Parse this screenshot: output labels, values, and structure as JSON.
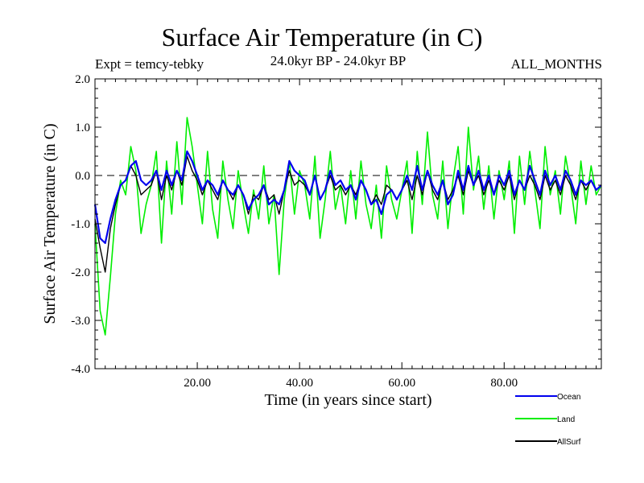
{
  "header": {
    "title": "Surface Air Temperature (in C)",
    "expt": "Expt = temcy-tebky",
    "period": "24.0kyr BP - 24.0kyr BP",
    "months": "ALL_MONTHS"
  },
  "chart_data": {
    "type": "line",
    "title": "Surface Air Temperature (in C)",
    "xlabel": "Time (in years since start)",
    "ylabel": "Surface Air Temperature (in C)",
    "xlim": [
      0,
      99
    ],
    "ylim": [
      -4.0,
      2.0
    ],
    "x_ticks": [
      20,
      40,
      60,
      80
    ],
    "x_tick_labels": [
      "20.00",
      "40.00",
      "60.00",
      "80.00"
    ],
    "y_ticks": [
      2.0,
      1.0,
      0.0,
      -1.0,
      -2.0,
      -3.0,
      -4.0
    ],
    "y_tick_labels": [
      "2.0",
      "1.0",
      "0.0",
      "-1.0",
      "-2.0",
      "-3.0",
      "-4.0"
    ],
    "reference_line": 0.0,
    "legend_position": "bottom-right",
    "series": [
      {
        "name": "Land",
        "color": "#00ee00",
        "x": [
          0,
          1,
          2,
          3,
          4,
          5,
          6,
          7,
          8,
          9,
          10,
          11,
          12,
          13,
          14,
          15,
          16,
          17,
          18,
          19,
          20,
          21,
          22,
          23,
          24,
          25,
          26,
          27,
          28,
          29,
          30,
          31,
          32,
          33,
          34,
          35,
          36,
          37,
          38,
          39,
          40,
          41,
          42,
          43,
          44,
          45,
          46,
          47,
          48,
          49,
          50,
          51,
          52,
          53,
          54,
          55,
          56,
          57,
          58,
          59,
          60,
          61,
          62,
          63,
          64,
          65,
          66,
          67,
          68,
          69,
          70,
          71,
          72,
          73,
          74,
          75,
          76,
          77,
          78,
          79,
          80,
          81,
          82,
          83,
          84,
          85,
          86,
          87,
          88,
          89,
          90,
          91,
          92,
          93,
          94,
          95,
          96,
          97,
          98,
          99
        ],
        "values": [
          -1.0,
          -2.8,
          -3.3,
          -2.1,
          -0.8,
          -0.1,
          -0.4,
          0.6,
          0.1,
          -1.2,
          -0.6,
          -0.2,
          0.5,
          -1.4,
          0.3,
          -0.8,
          0.7,
          -0.6,
          1.2,
          0.6,
          -0.2,
          -1.0,
          0.5,
          -0.7,
          -1.3,
          0.3,
          -0.5,
          -1.1,
          0.1,
          -0.6,
          -1.2,
          -0.3,
          -0.9,
          0.2,
          -1.0,
          -0.4,
          -2.05,
          -0.5,
          0.3,
          -0.8,
          0.1,
          -0.2,
          -0.9,
          0.4,
          -1.3,
          -0.5,
          0.5,
          -0.7,
          -0.2,
          -1.0,
          0.1,
          -0.9,
          0.3,
          -0.6,
          -1.1,
          -0.2,
          -1.3,
          0.2,
          -0.5,
          -0.9,
          -0.3,
          0.3,
          -1.2,
          0.5,
          -0.6,
          0.9,
          -0.4,
          -0.9,
          0.3,
          -1.1,
          -0.1,
          0.6,
          -0.8,
          1.0,
          -0.3,
          0.4,
          -0.7,
          0.2,
          -0.9,
          0.1,
          -0.5,
          0.3,
          -1.2,
          0.4,
          -0.6,
          0.5,
          -0.3,
          -1.1,
          0.6,
          -0.4,
          0.1,
          -0.8,
          0.4,
          -0.2,
          -1.0,
          0.3,
          -0.6,
          0.2,
          -0.4,
          -0.2
        ]
      },
      {
        "name": "AllSurf",
        "color": "#000000",
        "x": [
          0,
          1,
          2,
          3,
          4,
          5,
          6,
          7,
          8,
          9,
          10,
          11,
          12,
          13,
          14,
          15,
          16,
          17,
          18,
          19,
          20,
          21,
          22,
          23,
          24,
          25,
          26,
          27,
          28,
          29,
          30,
          31,
          32,
          33,
          34,
          35,
          36,
          37,
          38,
          39,
          40,
          41,
          42,
          43,
          44,
          45,
          46,
          47,
          48,
          49,
          50,
          51,
          52,
          53,
          54,
          55,
          56,
          57,
          58,
          59,
          60,
          61,
          62,
          63,
          64,
          65,
          66,
          67,
          68,
          69,
          70,
          71,
          72,
          73,
          74,
          75,
          76,
          77,
          78,
          79,
          80,
          81,
          82,
          83,
          84,
          85,
          86,
          87,
          88,
          89,
          90,
          91,
          92,
          93,
          94,
          95,
          96,
          97,
          98,
          99
        ],
        "values": [
          -0.9,
          -1.5,
          -2.0,
          -1.1,
          -0.6,
          -0.2,
          -0.1,
          0.2,
          0.0,
          -0.4,
          -0.3,
          -0.2,
          0.1,
          -0.5,
          0.0,
          -0.3,
          0.1,
          -0.2,
          0.4,
          0.1,
          -0.1,
          -0.4,
          -0.1,
          -0.3,
          -0.5,
          -0.1,
          -0.3,
          -0.5,
          -0.2,
          -0.4,
          -0.8,
          -0.4,
          -0.5,
          -0.2,
          -0.5,
          -0.4,
          -0.8,
          -0.3,
          0.1,
          -0.2,
          -0.1,
          -0.2,
          -0.4,
          0.0,
          -0.5,
          -0.3,
          0.0,
          -0.3,
          -0.2,
          -0.4,
          -0.2,
          -0.4,
          -0.1,
          -0.3,
          -0.6,
          -0.4,
          -0.6,
          -0.2,
          -0.3,
          -0.5,
          -0.3,
          -0.1,
          -0.5,
          0.0,
          -0.4,
          0.1,
          -0.3,
          -0.5,
          -0.1,
          -0.5,
          -0.3,
          0.0,
          -0.4,
          0.1,
          -0.2,
          0.0,
          -0.4,
          -0.1,
          -0.4,
          -0.1,
          -0.3,
          0.0,
          -0.5,
          -0.1,
          -0.3,
          0.0,
          -0.2,
          -0.5,
          0.0,
          -0.3,
          -0.1,
          -0.4,
          0.0,
          -0.2,
          -0.5,
          -0.1,
          -0.3,
          -0.1,
          -0.3,
          -0.2
        ]
      },
      {
        "name": "Ocean",
        "color": "#0000ee",
        "x": [
          0,
          1,
          2,
          3,
          4,
          5,
          6,
          7,
          8,
          9,
          10,
          11,
          12,
          13,
          14,
          15,
          16,
          17,
          18,
          19,
          20,
          21,
          22,
          23,
          24,
          25,
          26,
          27,
          28,
          29,
          30,
          31,
          32,
          33,
          34,
          35,
          36,
          37,
          38,
          39,
          40,
          41,
          42,
          43,
          44,
          45,
          46,
          47,
          48,
          49,
          50,
          51,
          52,
          53,
          54,
          55,
          56,
          57,
          58,
          59,
          60,
          61,
          62,
          63,
          64,
          65,
          66,
          67,
          68,
          69,
          70,
          71,
          72,
          73,
          74,
          75,
          76,
          77,
          78,
          79,
          80,
          81,
          82,
          83,
          84,
          85,
          86,
          87,
          88,
          89,
          90,
          91,
          92,
          93,
          94,
          95,
          96,
          97,
          98,
          99
        ],
        "values": [
          -0.6,
          -1.3,
          -1.4,
          -0.9,
          -0.5,
          -0.2,
          -0.1,
          0.2,
          0.3,
          -0.1,
          -0.2,
          -0.1,
          0.1,
          -0.3,
          0.1,
          -0.2,
          0.1,
          -0.1,
          0.5,
          0.3,
          0.0,
          -0.3,
          -0.1,
          -0.2,
          -0.4,
          -0.1,
          -0.3,
          -0.4,
          -0.2,
          -0.4,
          -0.7,
          -0.5,
          -0.4,
          -0.2,
          -0.6,
          -0.5,
          -0.6,
          -0.3,
          0.3,
          0.1,
          0.0,
          -0.1,
          -0.4,
          0.0,
          -0.5,
          -0.3,
          0.1,
          -0.2,
          -0.1,
          -0.3,
          -0.2,
          -0.5,
          -0.1,
          -0.3,
          -0.6,
          -0.5,
          -0.8,
          -0.4,
          -0.3,
          -0.5,
          -0.3,
          0.0,
          -0.3,
          0.2,
          -0.3,
          0.1,
          -0.2,
          -0.4,
          -0.1,
          -0.6,
          -0.4,
          0.1,
          -0.3,
          0.2,
          -0.2,
          0.1,
          -0.3,
          0.0,
          -0.4,
          0.0,
          -0.2,
          0.1,
          -0.4,
          -0.1,
          -0.3,
          0.2,
          -0.1,
          -0.4,
          0.1,
          -0.2,
          0.0,
          -0.3,
          0.1,
          -0.1,
          -0.4,
          -0.1,
          -0.2,
          -0.1,
          -0.3,
          -0.2
        ]
      }
    ]
  }
}
